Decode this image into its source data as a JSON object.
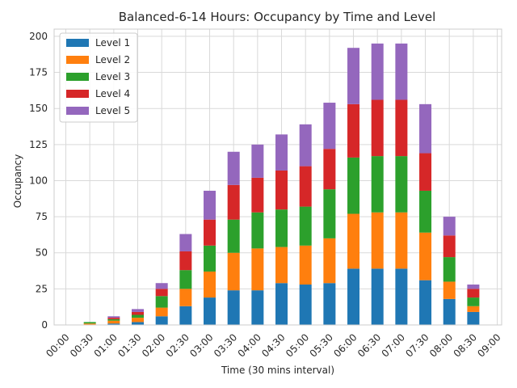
{
  "chart_data": {
    "type": "bar",
    "stacked": true,
    "title": "Balanced-6-14 Hours: Occupancy by Time and Level",
    "xlabel": "Time (30 mins interval)",
    "ylabel": "Occupancy",
    "ylim": [
      0,
      205
    ],
    "yticks": [
      0,
      25,
      50,
      75,
      100,
      125,
      150,
      175,
      200
    ],
    "grid": true,
    "legend_position": "top-left",
    "categories": [
      "00:00",
      "00:30",
      "01:00",
      "01:30",
      "02:00",
      "02:30",
      "03:00",
      "03:30",
      "04:00",
      "04:30",
      "05:00",
      "05:30",
      "06:00",
      "06:30",
      "07:00",
      "07:30",
      "08:00",
      "08:30",
      "09:00"
    ],
    "series": [
      {
        "name": "Level 1",
        "color": "#1f77b4",
        "values": [
          0,
          0,
          1,
          2,
          6,
          13,
          19,
          24,
          24,
          29,
          28,
          29,
          39,
          39,
          39,
          31,
          18,
          9,
          0
        ]
      },
      {
        "name": "Level 2",
        "color": "#ff7f0e",
        "values": [
          0,
          1,
          2,
          3,
          6,
          12,
          18,
          26,
          29,
          25,
          27,
          31,
          38,
          39,
          39,
          33,
          12,
          4,
          0
        ]
      },
      {
        "name": "Level 3",
        "color": "#2ca02c",
        "values": [
          0,
          1,
          1,
          2,
          8,
          13,
          18,
          23,
          25,
          26,
          27,
          34,
          39,
          39,
          39,
          29,
          17,
          6,
          0
        ]
      },
      {
        "name": "Level 4",
        "color": "#d62728",
        "values": [
          0,
          0,
          1,
          2,
          5,
          13,
          18,
          24,
          24,
          27,
          28,
          28,
          37,
          39,
          39,
          26,
          15,
          6,
          0
        ]
      },
      {
        "name": "Level 5",
        "color": "#9467bd",
        "values": [
          0,
          0,
          1,
          2,
          4,
          12,
          20,
          23,
          23,
          25,
          29,
          32,
          39,
          39,
          39,
          34,
          13,
          3,
          0
        ]
      }
    ]
  }
}
